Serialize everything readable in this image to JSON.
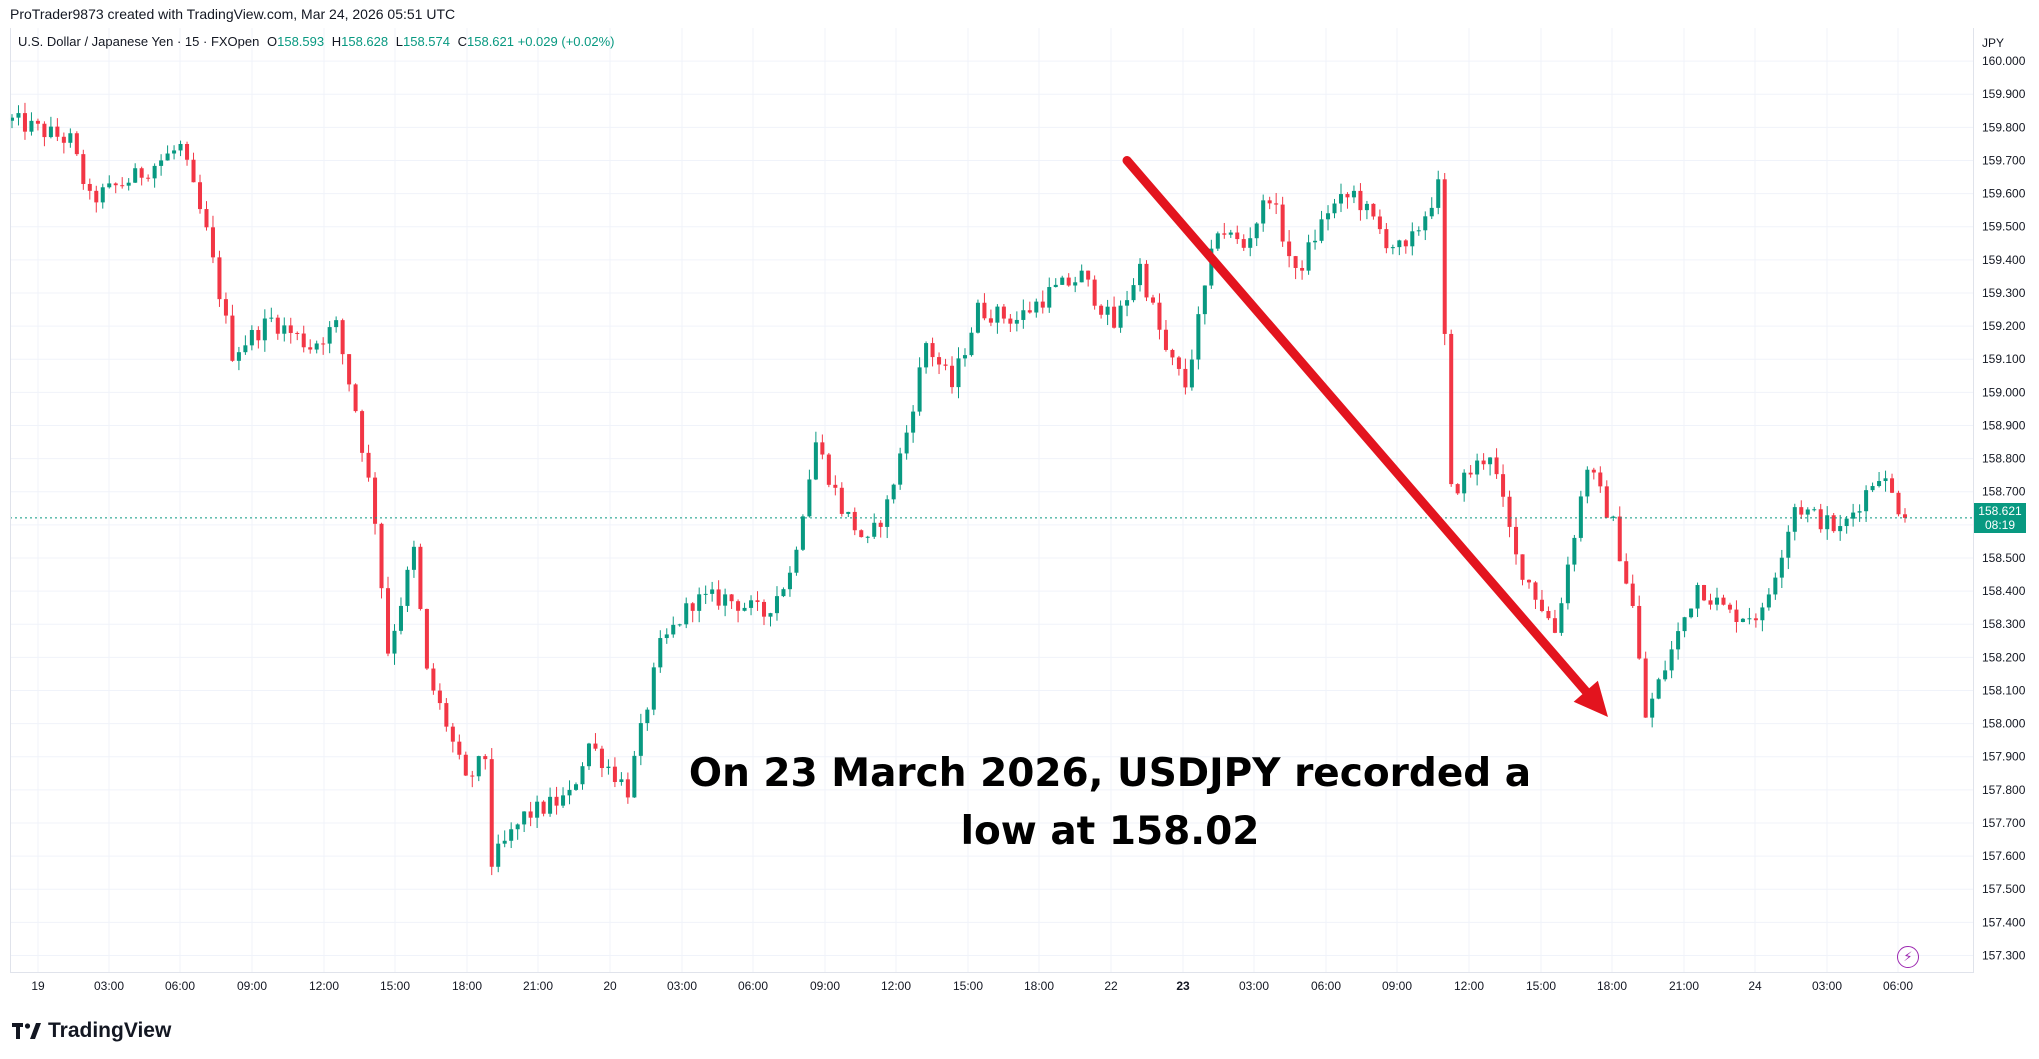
{
  "header": {
    "caption": "ProTrader9873 created with TradingView.com, Mar 24, 2026 05:51 UTC"
  },
  "legend": {
    "symbol": "U.S. Dollar / Japanese Yen · 15 · FXOpen",
    "o_label": "O",
    "o_value": "158.593",
    "h_label": "H",
    "h_value": "158.628",
    "l_label": "L",
    "l_value": "158.574",
    "c_label": "C",
    "c_value": "158.621",
    "change": "+0.029 (+0.02%)"
  },
  "axis": {
    "currency": "JPY"
  },
  "last_price": {
    "value": "158.621",
    "countdown": "08:19"
  },
  "annotation": {
    "line1": "On 23 March 2026, USDJPY recorded a",
    "line2": "low at 158.02"
  },
  "brand": {
    "name": "TradingView"
  },
  "colors": {
    "up": "#089981",
    "down": "#f23645",
    "arrow": "#e3141e",
    "grid": "#f0f3fa",
    "text": "#131722"
  },
  "chart_data": {
    "type": "candlestick",
    "ylim": [
      157.25,
      160.1
    ],
    "y_ticks": [
      "160.000",
      "159.900",
      "159.800",
      "159.700",
      "159.600",
      "159.500",
      "159.400",
      "159.300",
      "159.200",
      "159.100",
      "159.000",
      "158.900",
      "158.800",
      "158.700",
      "158.600",
      "158.500",
      "158.400",
      "158.300",
      "158.200",
      "158.100",
      "158.000",
      "157.900",
      "157.800",
      "157.700",
      "157.600",
      "157.500",
      "157.400",
      "157.300"
    ],
    "x_ticks": [
      "19",
      "03:00",
      "06:00",
      "09:00",
      "12:00",
      "15:00",
      "18:00",
      "21:00",
      "20",
      "03:00",
      "06:00",
      "09:00",
      "12:00",
      "15:00",
      "18:00",
      "22",
      "23",
      "03:00",
      "06:00",
      "09:00",
      "12:00",
      "15:00",
      "18:00",
      "21:00",
      "24",
      "03:00",
      "06:00"
    ],
    "last_close": 158.621,
    "waypoints": [
      [
        0,
        159.82
      ],
      [
        9,
        159.76
      ],
      [
        12,
        159.58
      ],
      [
        19,
        159.65
      ],
      [
        26,
        159.74
      ],
      [
        30,
        159.48
      ],
      [
        34,
        159.12
      ],
      [
        40,
        159.22
      ],
      [
        46,
        159.14
      ],
      [
        50,
        159.2
      ],
      [
        53,
        158.95
      ],
      [
        56,
        158.62
      ],
      [
        58,
        158.22
      ],
      [
        62,
        158.52
      ],
      [
        64,
        158.15
      ],
      [
        67,
        158.0
      ],
      [
        70,
        157.82
      ],
      [
        73,
        157.9
      ],
      [
        74,
        157.58
      ],
      [
        79,
        157.72
      ],
      [
        86,
        157.78
      ],
      [
        89,
        157.94
      ],
      [
        95,
        157.8
      ],
      [
        100,
        158.23
      ],
      [
        105,
        158.37
      ],
      [
        110,
        158.38
      ],
      [
        116,
        158.33
      ],
      [
        120,
        158.45
      ],
      [
        124,
        158.85
      ],
      [
        128,
        158.65
      ],
      [
        132,
        158.54
      ],
      [
        135,
        158.66
      ],
      [
        138,
        158.88
      ],
      [
        141,
        159.15
      ],
      [
        145,
        159.02
      ],
      [
        149,
        159.25
      ],
      [
        155,
        159.22
      ],
      [
        160,
        159.3
      ],
      [
        165,
        159.35
      ],
      [
        170,
        159.2
      ],
      [
        174,
        159.38
      ],
      [
        178,
        159.12
      ],
      [
        181,
        159.02
      ],
      [
        186,
        159.5
      ],
      [
        190,
        159.44
      ],
      [
        194,
        159.6
      ],
      [
        198,
        159.35
      ],
      [
        203,
        159.55
      ],
      [
        207,
        159.6
      ],
      [
        212,
        159.46
      ],
      [
        215,
        159.42
      ],
      [
        220,
        159.62
      ],
      [
        222,
        158.7
      ],
      [
        228,
        158.82
      ],
      [
        232,
        158.5
      ],
      [
        238,
        158.28
      ],
      [
        243,
        158.78
      ],
      [
        247,
        158.6
      ],
      [
        250,
        158.35
      ],
      [
        252,
        158.02
      ],
      [
        256,
        158.22
      ],
      [
        260,
        158.42
      ],
      [
        265,
        158.33
      ],
      [
        270,
        158.33
      ],
      [
        275,
        158.66
      ],
      [
        282,
        158.58
      ],
      [
        288,
        158.76
      ],
      [
        292,
        158.62
      ]
    ],
    "arrow": {
      "from_x_tick": "22",
      "from_y": 159.7,
      "to_x_tick": "18:00",
      "to_y": 158.02
    },
    "annotated_low": 158.02
  }
}
